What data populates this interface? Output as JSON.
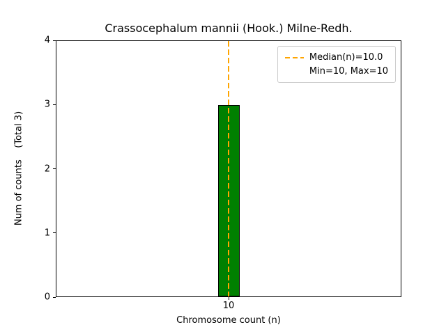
{
  "chart_data": {
    "type": "bar",
    "title": "Crassocephalum mannii (Hook.) Milne-Redh.",
    "xlabel": "Chromosome count (n)",
    "ylabel": "Num of counts    (Total 3)",
    "categories": [
      "10"
    ],
    "values": [
      3
    ],
    "ylim": [
      0,
      4
    ],
    "yticks": [
      0,
      1,
      2,
      3,
      4
    ],
    "total_counts": 3,
    "bar_color": "#008000",
    "bar_edge_color": "#000000",
    "median_line": {
      "x": 10,
      "median": 10.0,
      "color": "#FFA500",
      "style": "dashed"
    },
    "min": 10,
    "max": 10,
    "grid": false,
    "legend": {
      "position": "upper right",
      "entries": [
        {
          "label": "Median(n)=10.0",
          "handle": "dashed-line",
          "color": "#FFA500"
        },
        {
          "label": "Min=10, Max=10",
          "handle": "none"
        }
      ]
    }
  }
}
